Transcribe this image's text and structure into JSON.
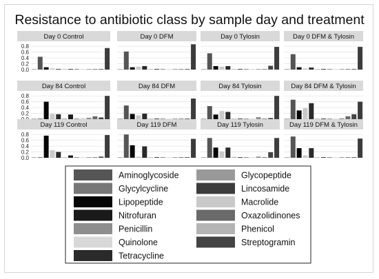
{
  "chart_data": {
    "type": "bar",
    "title": "Resistance to antibiotic class by sample day and treatment",
    "xlabel": "",
    "ylabel": "",
    "ylim": [
      0,
      0.9
    ],
    "yticks": [
      "0.0",
      "0.2",
      "0.4",
      "0.6",
      "0.8"
    ],
    "grid": true,
    "legend_position": "bottom",
    "categories": [
      "Aminoglycoside",
      "Glycopeptide",
      "Glycylcycline",
      "Lincosamide",
      "Lipopeptide",
      "Macrolide",
      "Nitrofuran",
      "Oxazolidinones",
      "Penicillin",
      "Phenicol",
      "Quinolone",
      "Streptogramin",
      "Tetracycline"
    ],
    "category_colors": [
      "#555555",
      "#999999",
      "#777777",
      "#3c3c3c",
      "#060606",
      "#c9c9c9",
      "#1a1a1a",
      "#6a6a6a",
      "#8e8e8e",
      "#b4b4b4",
      "#d8d8d8",
      "#444444",
      "#2a2a2a"
    ],
    "bar_order": [
      "Glycopeptide",
      "Aminoglycoside",
      "Lipopeptide",
      "Macrolide",
      "Tetracycline",
      "Phenicol",
      "Nitrofuran",
      "Glycylcycline",
      "Quinolone",
      "Penicillin",
      "Oxazolidinones",
      "Streptogramin",
      "Lincosamide"
    ],
    "panels": [
      {
        "label": "Day 0 Control",
        "values": [
          0.0,
          0.44,
          0.08,
          0.04,
          0.02,
          0.01,
          0.0,
          0.0,
          0.02,
          0.01,
          0.0,
          0.01,
          0.74
        ]
      },
      {
        "label": "Day 0 DFM",
        "values": [
          0.0,
          0.62,
          0.08,
          0.1,
          0.12,
          0.01,
          0.0,
          0.0,
          0.01,
          0.02,
          0.0,
          0.01,
          0.87
        ]
      },
      {
        "label": "Day 0 Tylosin",
        "values": [
          0.0,
          0.56,
          0.12,
          0.1,
          0.12,
          0.01,
          0.0,
          0.0,
          0.02,
          0.01,
          0.0,
          0.13,
          0.78
        ]
      },
      {
        "label": "Day 0 DFM & Tylosin",
        "values": [
          0.0,
          0.53,
          0.08,
          0.04,
          0.07,
          0.0,
          0.0,
          0.0,
          0.01,
          0.0,
          0.0,
          0.01,
          0.78
        ]
      },
      {
        "label": "Day 84 Control",
        "values": [
          0.0,
          0.0,
          0.6,
          0.18,
          0.17,
          0.03,
          0.16,
          0.0,
          0.04,
          0.05,
          0.1,
          0.06,
          0.8
        ]
      },
      {
        "label": "Day 84 DFM",
        "values": [
          0.0,
          0.47,
          0.18,
          0.13,
          0.19,
          0.01,
          0.0,
          0.0,
          0.02,
          0.01,
          0.0,
          0.02,
          0.71
        ]
      },
      {
        "label": "Day 84 Tylosin",
        "values": [
          0.0,
          0.45,
          0.16,
          0.28,
          0.25,
          0.02,
          0.0,
          0.0,
          0.02,
          0.07,
          0.0,
          0.04,
          0.8
        ]
      },
      {
        "label": "Day 84 DFM & Tylosin",
        "values": [
          0.0,
          0.67,
          0.3,
          0.38,
          0.55,
          0.01,
          0.0,
          0.0,
          0.02,
          0.03,
          0.1,
          0.17,
          0.6
        ]
      },
      {
        "label": "Day 119 Control",
        "values": [
          0.0,
          0.0,
          0.76,
          0.26,
          0.2,
          0.02,
          0.08,
          0.0,
          0.02,
          0.02,
          0.01,
          0.04,
          0.78
        ]
      },
      {
        "label": "Day 119 DFM",
        "values": [
          0.0,
          0.8,
          0.43,
          0.04,
          0.39,
          0.02,
          0.0,
          0.0,
          0.02,
          0.02,
          0.02,
          0.02,
          0.65
        ]
      },
      {
        "label": "Day 119 Tylosin",
        "values": [
          0.0,
          0.68,
          0.35,
          0.22,
          0.35,
          0.03,
          0.0,
          0.0,
          0.02,
          0.04,
          0.02,
          0.19,
          0.68
        ]
      },
      {
        "label": "Day 119 DFM & Tylosin",
        "values": [
          0.0,
          0.73,
          0.33,
          0.08,
          0.33,
          0.02,
          0.0,
          0.0,
          0.02,
          0.02,
          0.02,
          0.02,
          0.66
        ]
      }
    ]
  }
}
